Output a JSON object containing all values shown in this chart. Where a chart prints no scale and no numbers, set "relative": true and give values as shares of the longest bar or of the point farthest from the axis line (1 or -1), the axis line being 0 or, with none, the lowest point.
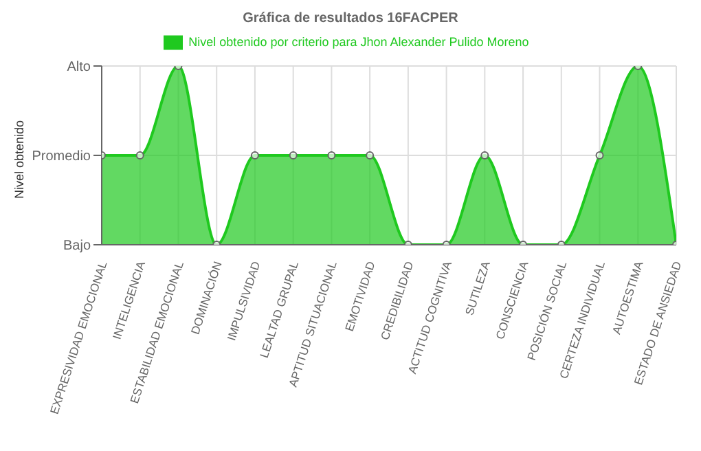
{
  "chart_data": {
    "type": "area",
    "title": "Gráfica de resultados 16FACPER",
    "ylabel": "Nivel obtenido",
    "categories": [
      "EXPRESIVIDAD EMOCIONAL",
      "INTELIGENCIA",
      "ESTABILIDAD EMOCIONAL",
      "DOMINACIÓN",
      "IMPULSIVIDAD",
      "LEALTAD GRUPAL",
      "APTITUD SITUACIONAL",
      "EMOTIVIDAD",
      "CREDIBILIDAD",
      "ACTITUD COGNITIVA",
      "SUTILEZA",
      "CONSCIENCIA",
      "POSICIÓN SOCIAL",
      "CERTEZA INDIVIDUAL",
      "AUTOESTIMA",
      "ESTADO DE ANSIEDAD"
    ],
    "series": [
      {
        "name": "Nivel obtenido por criterio para Jhon Alexander Pulido Moreno",
        "color": "#1fc91f",
        "values": [
          0.5,
          0.5,
          1,
          0,
          0.5,
          0.5,
          0.5,
          0.5,
          0,
          0,
          0.5,
          0,
          0,
          0.5,
          1,
          0
        ]
      }
    ],
    "relative": true,
    "y_categories": [
      "Alto",
      "Promedio",
      "Bajo"
    ],
    "grid": true,
    "legend": "top",
    "marker": "circle",
    "line_style": "solid"
  }
}
